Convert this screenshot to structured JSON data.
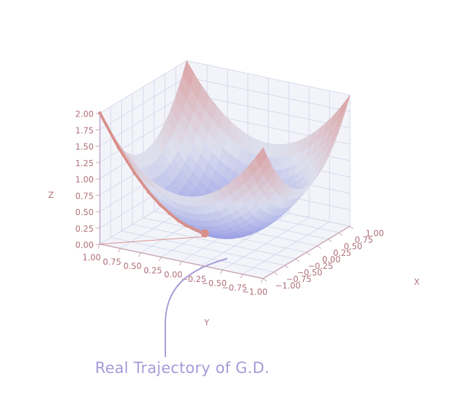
{
  "chart_data": {
    "type": "surface",
    "surface_function": "z = x^2 + y^2",
    "x_range": [
      -1,
      1
    ],
    "y_range": [
      -1,
      1
    ],
    "z_range": [
      0,
      2
    ],
    "x_ticks": [
      "1.00",
      "0.75",
      "0.50",
      "0.25",
      "0.00",
      "−0.25",
      "−0.50",
      "−0.75",
      "−1.00"
    ],
    "y_ticks": [
      "1.00",
      "0.75",
      "0.50",
      "0.25",
      "0.00",
      "−0.25",
      "−0.50",
      "−0.75",
      "−1.00"
    ],
    "z_ticks": [
      "0.00",
      "0.25",
      "0.50",
      "0.75",
      "1.00",
      "1.25",
      "1.50",
      "1.75",
      "2.00"
    ],
    "xlabel": "X",
    "ylabel": "Y",
    "zlabel": "Z",
    "grid": true,
    "trajectory": [
      {
        "x": -1.0,
        "y": 1.0,
        "z": 2.0
      },
      {
        "x": -0.85,
        "y": 0.85,
        "z": 1.45
      },
      {
        "x": -0.72,
        "y": 0.72,
        "z": 1.04
      },
      {
        "x": -0.61,
        "y": 0.61,
        "z": 0.74
      },
      {
        "x": -0.52,
        "y": 0.52,
        "z": 0.54
      },
      {
        "x": -0.44,
        "y": 0.44,
        "z": 0.39
      },
      {
        "x": -0.37,
        "y": 0.37,
        "z": 0.27
      },
      {
        "x": -0.31,
        "y": 0.31,
        "z": 0.19
      },
      {
        "x": -0.26,
        "y": 0.26,
        "z": 0.14
      },
      {
        "x": -0.22,
        "y": 0.22,
        "z": 0.1
      },
      {
        "x": -0.19,
        "y": 0.19,
        "z": 0.07
      },
      {
        "x": -0.16,
        "y": 0.16,
        "z": 0.05
      }
    ],
    "annotation": "Real Trajectory of G.D."
  },
  "colors": {
    "low": "#8f95e3",
    "mid": "#dcdfee",
    "high": "#d99a9a",
    "tick_text": "#b0707a",
    "grid": "#d6d8ec",
    "pane_edge": "#c9a6b4",
    "trajectory": "#d9908a",
    "annotation": "#a79ad8"
  }
}
